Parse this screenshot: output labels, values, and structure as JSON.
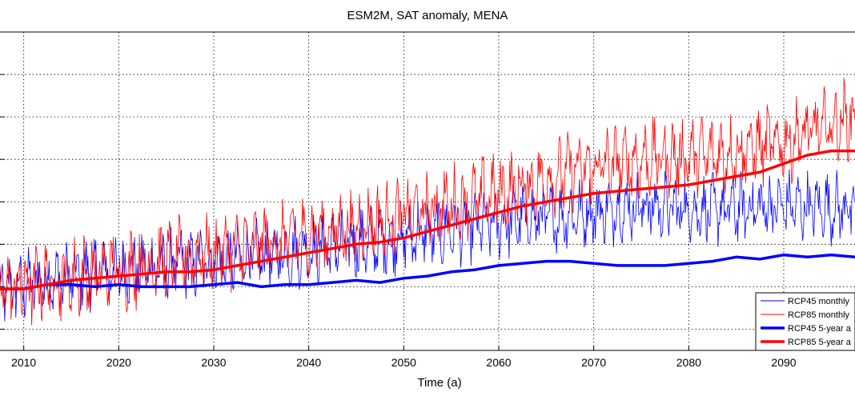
{
  "chart_data": {
    "type": "line",
    "title": "ESM2M, SAT anomaly, MENA",
    "xlabel": "Time (a)",
    "ylabel": "",
    "xlim": [
      2007.5,
      2097.5
    ],
    "ylim": [
      -1.5,
      6.0
    ],
    "x_ticks": [
      2010,
      2020,
      2030,
      2040,
      2050,
      2060,
      2070,
      2080,
      2090
    ],
    "y_grid": [
      -1,
      0,
      1,
      2,
      3,
      4,
      5
    ],
    "grid": true,
    "legend_position": "bottom-right",
    "series": [
      {
        "name": "RCP45 monthly",
        "color": "#0000ff",
        "style": "thin",
        "x": [
          2007.5,
          2015,
          2022.5,
          2030,
          2037.5,
          2045,
          2052.5,
          2060,
          2067.5,
          2075,
          2082.5,
          2090,
          2097.5
        ],
        "values": [
          -0.1,
          0.25,
          0.45,
          0.6,
          0.8,
          1.0,
          1.25,
          1.5,
          1.7,
          1.9,
          1.8,
          1.9,
          1.85
        ]
      },
      {
        "name": "RCP85 monthly",
        "color": "#ff0000",
        "style": "thin",
        "x": [
          2007.5,
          2015,
          2022.5,
          2030,
          2037.5,
          2045,
          2052.5,
          2060,
          2067.5,
          2075,
          2082.5,
          2090,
          2097.5
        ],
        "values": [
          -0.05,
          0.2,
          0.5,
          0.8,
          1.1,
          1.4,
          1.8,
          2.2,
          2.7,
          3.0,
          3.1,
          3.4,
          4.0
        ]
      },
      {
        "name": "RCP45 5-year a",
        "color": "#0000ff",
        "style": "thick",
        "x": [
          2007.5,
          2010,
          2012.5,
          2015,
          2017.5,
          2020,
          2022.5,
          2025,
          2027.5,
          2030,
          2032.5,
          2035,
          2037.5,
          2040,
          2042.5,
          2045,
          2047.5,
          2050,
          2052.5,
          2055,
          2057.5,
          2060,
          2062.5,
          2065,
          2067.5,
          2070,
          2072.5,
          2075,
          2077.5,
          2080,
          2082.5,
          2085,
          2087.5,
          2090,
          2092.5,
          2095,
          2097.5
        ],
        "values": [
          -0.05,
          -0.05,
          0.05,
          0.05,
          0.0,
          0.05,
          0.0,
          0.0,
          0.0,
          0.05,
          0.1,
          0.0,
          0.05,
          0.05,
          0.1,
          0.15,
          0.1,
          0.2,
          0.25,
          0.35,
          0.4,
          0.5,
          0.55,
          0.6,
          0.6,
          0.55,
          0.5,
          0.5,
          0.5,
          0.55,
          0.6,
          0.7,
          0.65,
          0.75,
          0.7,
          0.75,
          0.7
        ]
      },
      {
        "name": "RCP85 5-year a",
        "color": "#ff0000",
        "style": "thick",
        "x": [
          2007.5,
          2010,
          2012.5,
          2015,
          2017.5,
          2020,
          2022.5,
          2025,
          2027.5,
          2030,
          2032.5,
          2035,
          2037.5,
          2040,
          2042.5,
          2045,
          2047.5,
          2050,
          2052.5,
          2055,
          2057.5,
          2060,
          2062.5,
          2065,
          2067.5,
          2070,
          2072.5,
          2075,
          2077.5,
          2080,
          2082.5,
          2085,
          2087.5,
          2090,
          2092.5,
          2095,
          2097.5
        ],
        "values": [
          -0.05,
          -0.05,
          0.05,
          0.15,
          0.2,
          0.25,
          0.3,
          0.35,
          0.35,
          0.4,
          0.5,
          0.6,
          0.7,
          0.8,
          0.9,
          1.0,
          1.05,
          1.15,
          1.3,
          1.45,
          1.6,
          1.75,
          1.9,
          2.0,
          2.1,
          2.2,
          2.25,
          2.3,
          2.35,
          2.4,
          2.5,
          2.6,
          2.7,
          2.9,
          3.1,
          3.2,
          3.2
        ]
      }
    ]
  }
}
